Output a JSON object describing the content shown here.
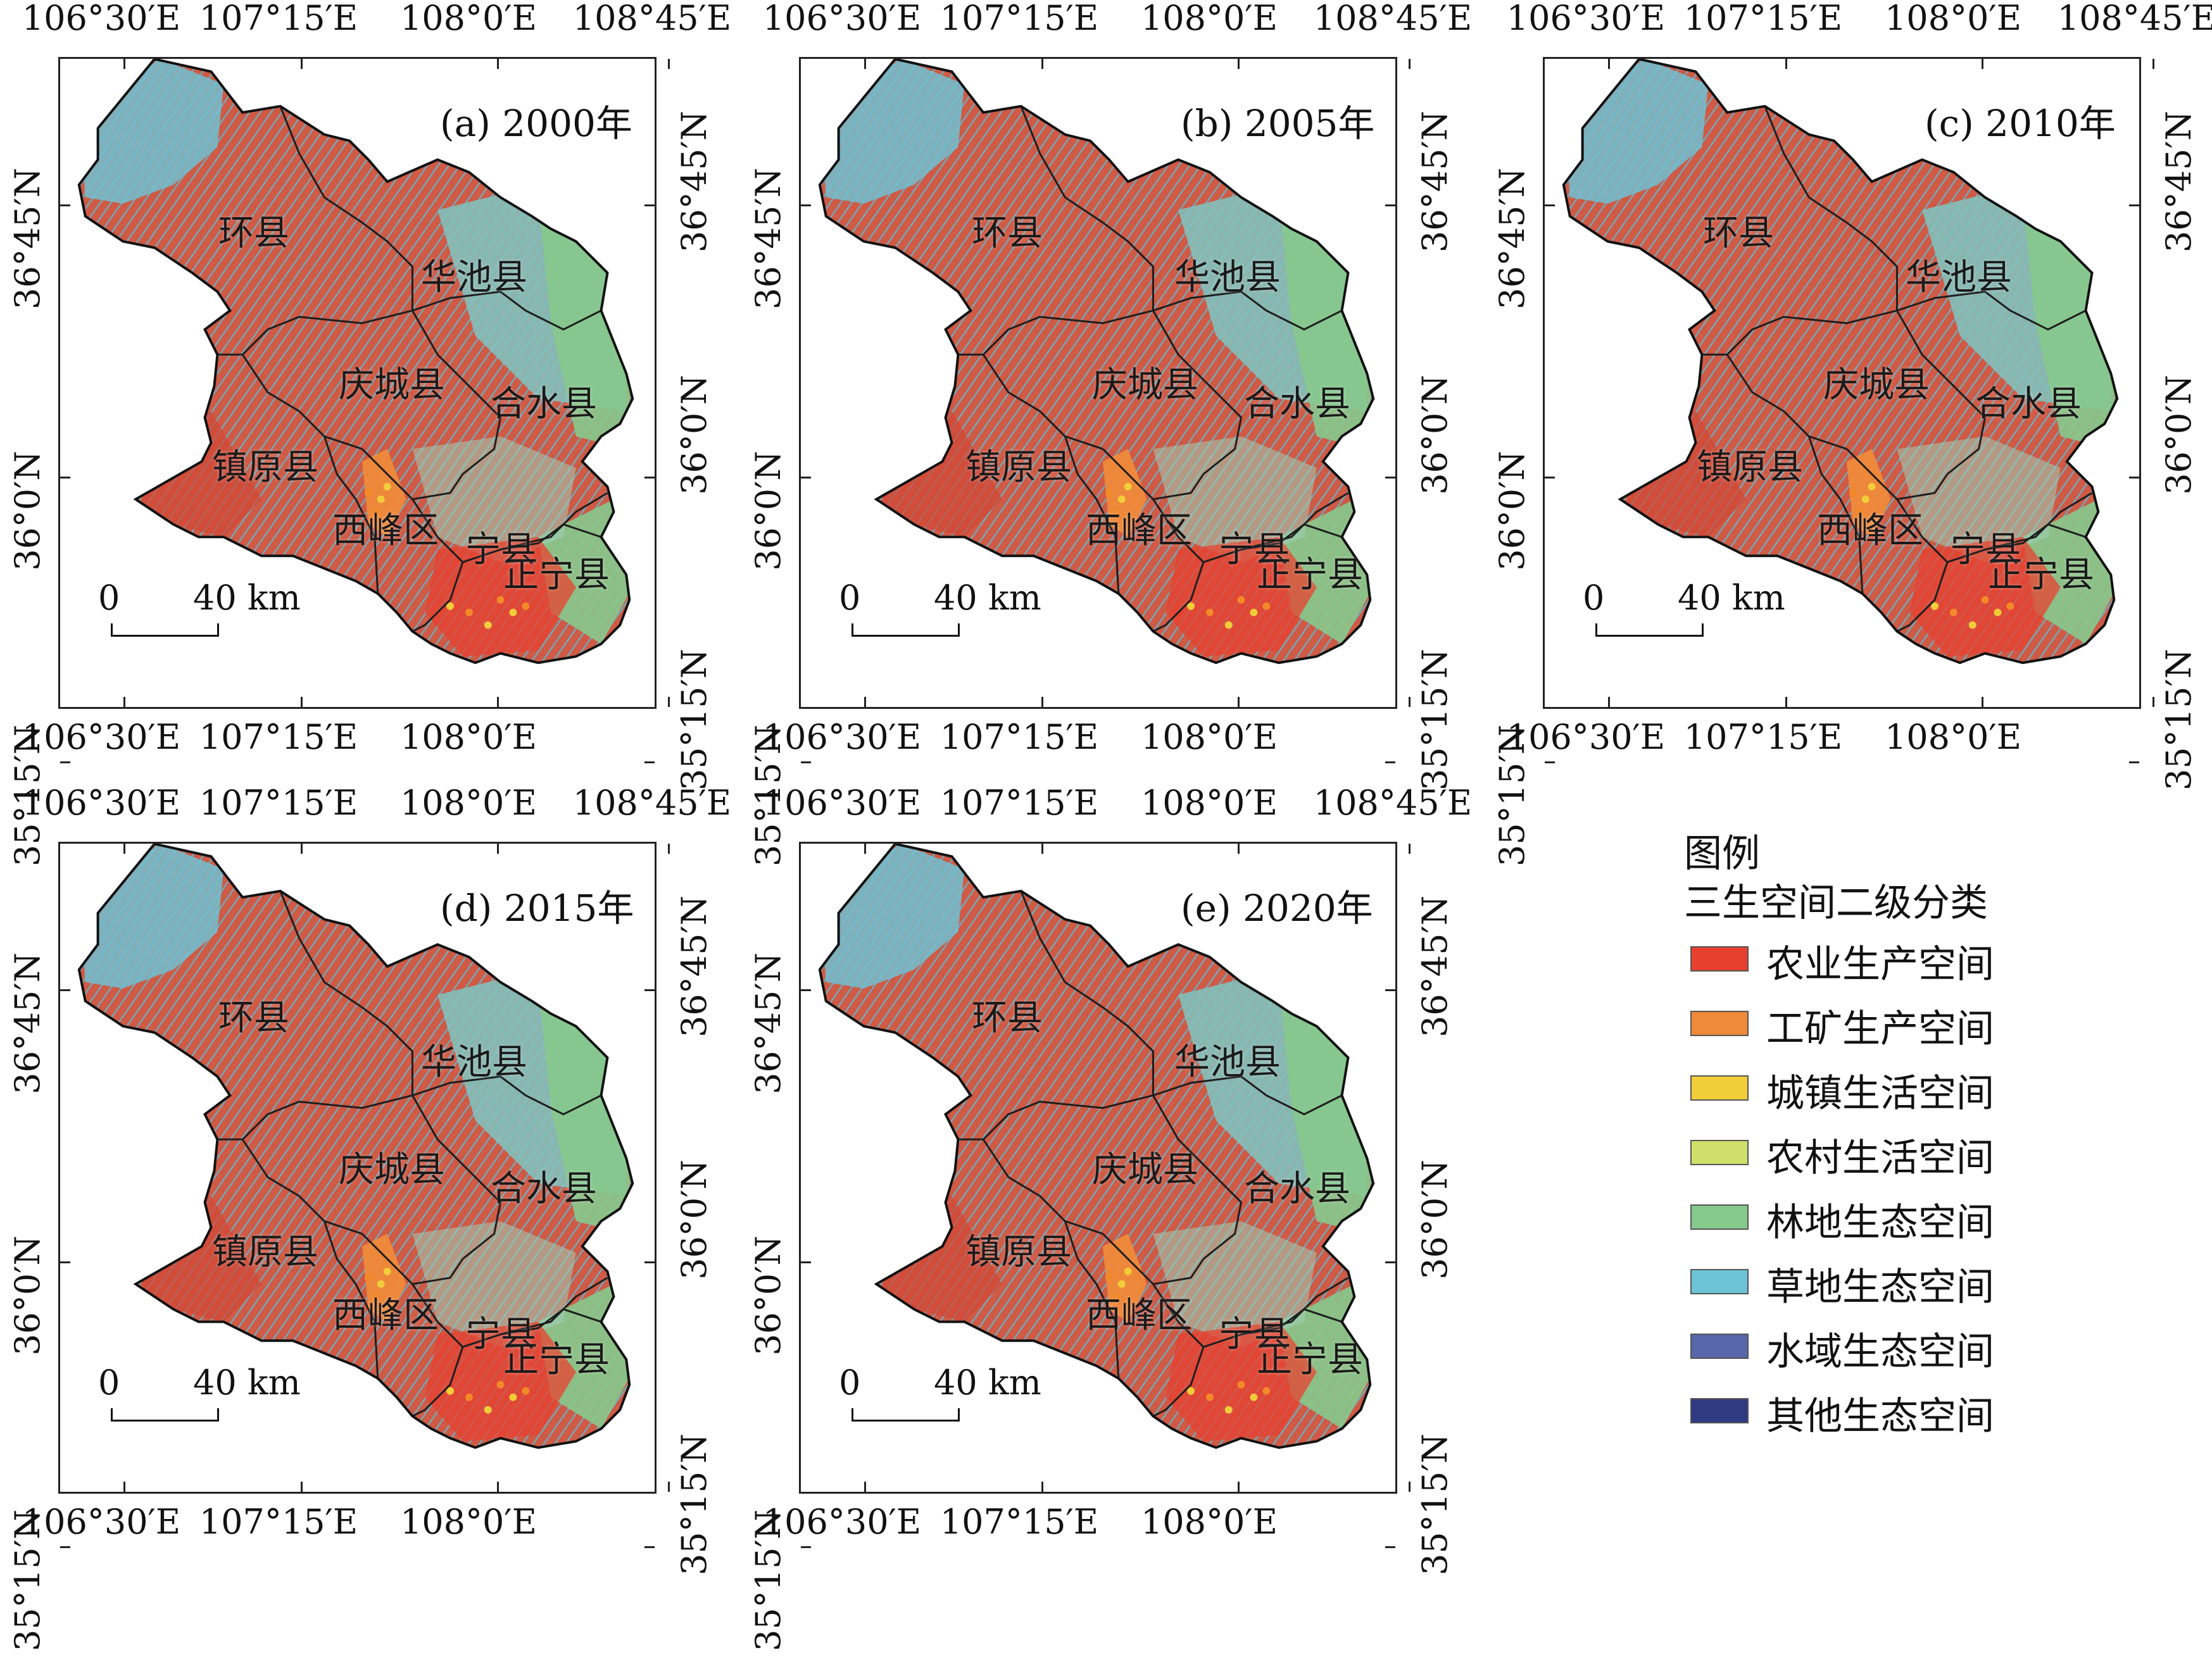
{
  "panels": [
    {
      "id": "a",
      "title": "(a) 2000年"
    },
    {
      "id": "b",
      "title": "(b) 2005年"
    },
    {
      "id": "c",
      "title": "(c) 2010年"
    },
    {
      "id": "d",
      "title": "(d) 2015年"
    },
    {
      "id": "e",
      "title": "(e) 2020年"
    }
  ],
  "axes": {
    "top_ticks": [
      "106°30′E",
      "107°15′E",
      "108°0′E",
      "108°45′E"
    ],
    "bottom_ticks": [
      "106°30′E",
      "107°15′E",
      "108°0′E"
    ],
    "left_ticks": [
      "36°45′N",
      "36°0′N",
      "35°15′N"
    ],
    "right_ticks": [
      "36°45′N",
      "36°0′N",
      "35°15′N"
    ]
  },
  "counties": [
    "环县",
    "华池县",
    "庆城县",
    "合水县",
    "镇原县",
    "西峰区",
    "宁县",
    "正宁县"
  ],
  "scale_bar": {
    "zero": "0",
    "distance": "40 km"
  },
  "legend": {
    "title": "图例",
    "subtitle": "三生空间二级分类",
    "items": [
      {
        "label": "农业生产空间",
        "color": "#e8402f"
      },
      {
        "label": "工矿生产空间",
        "color": "#ef8a3a"
      },
      {
        "label": "城镇生活空间",
        "color": "#f2cd3a"
      },
      {
        "label": "农村生活空间",
        "color": "#cfe06a"
      },
      {
        "label": "林地生态空间",
        "color": "#86c98c"
      },
      {
        "label": "草地生态空间",
        "color": "#6cc3d5"
      },
      {
        "label": "水域生态空间",
        "color": "#5867ab"
      },
      {
        "label": "其他生态空间",
        "color": "#2f3a82"
      }
    ]
  }
}
